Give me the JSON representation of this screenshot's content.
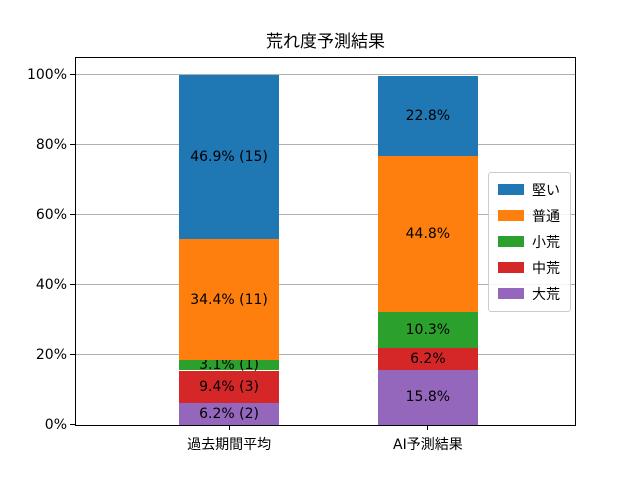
{
  "chart_data": {
    "type": "bar",
    "stacked": true,
    "title": "荒れ度予測結果",
    "categories": [
      "過去期間平均",
      "AI予測結果"
    ],
    "x": [
      0,
      1
    ],
    "xlim": [
      -0.77,
      1.74
    ],
    "bar_width": 0.5,
    "ylim": [
      0,
      105
    ],
    "yticks": [
      0,
      20,
      40,
      60,
      80,
      100
    ],
    "ytick_labels": [
      "0%",
      "20%",
      "40%",
      "60%",
      "80%",
      "100%"
    ],
    "grid": "horizontal gridlines on",
    "grid_color": "#b0b0b0",
    "axis_color": "#000000",
    "background": "#ffffff",
    "series": [
      {
        "name": "大荒",
        "color": "#9467bd",
        "values": [
          6.2,
          15.8
        ],
        "labels": [
          "6.2% (2)",
          "15.8%"
        ]
      },
      {
        "name": "中荒",
        "color": "#d62728",
        "values": [
          9.4,
          6.2
        ],
        "labels": [
          "9.4% (3)",
          "6.2%"
        ]
      },
      {
        "name": "小荒",
        "color": "#2ca02c",
        "values": [
          3.1,
          10.3
        ],
        "labels": [
          "3.1% (1)",
          "10.3%"
        ]
      },
      {
        "name": "普通",
        "color": "#ff7f0e",
        "values": [
          34.4,
          44.8
        ],
        "labels": [
          "34.4% (11)",
          "44.8%"
        ]
      },
      {
        "name": "堅い",
        "color": "#1f77b4",
        "values": [
          46.9,
          22.8
        ],
        "labels": [
          "46.9% (15)",
          "22.8%"
        ]
      }
    ],
    "series_order_note": "series listed bottom-to-top of stack",
    "legend": {
      "entries": [
        "堅い",
        "普通",
        "小荒",
        "中荒",
        "大荒"
      ],
      "location": "center right"
    }
  }
}
